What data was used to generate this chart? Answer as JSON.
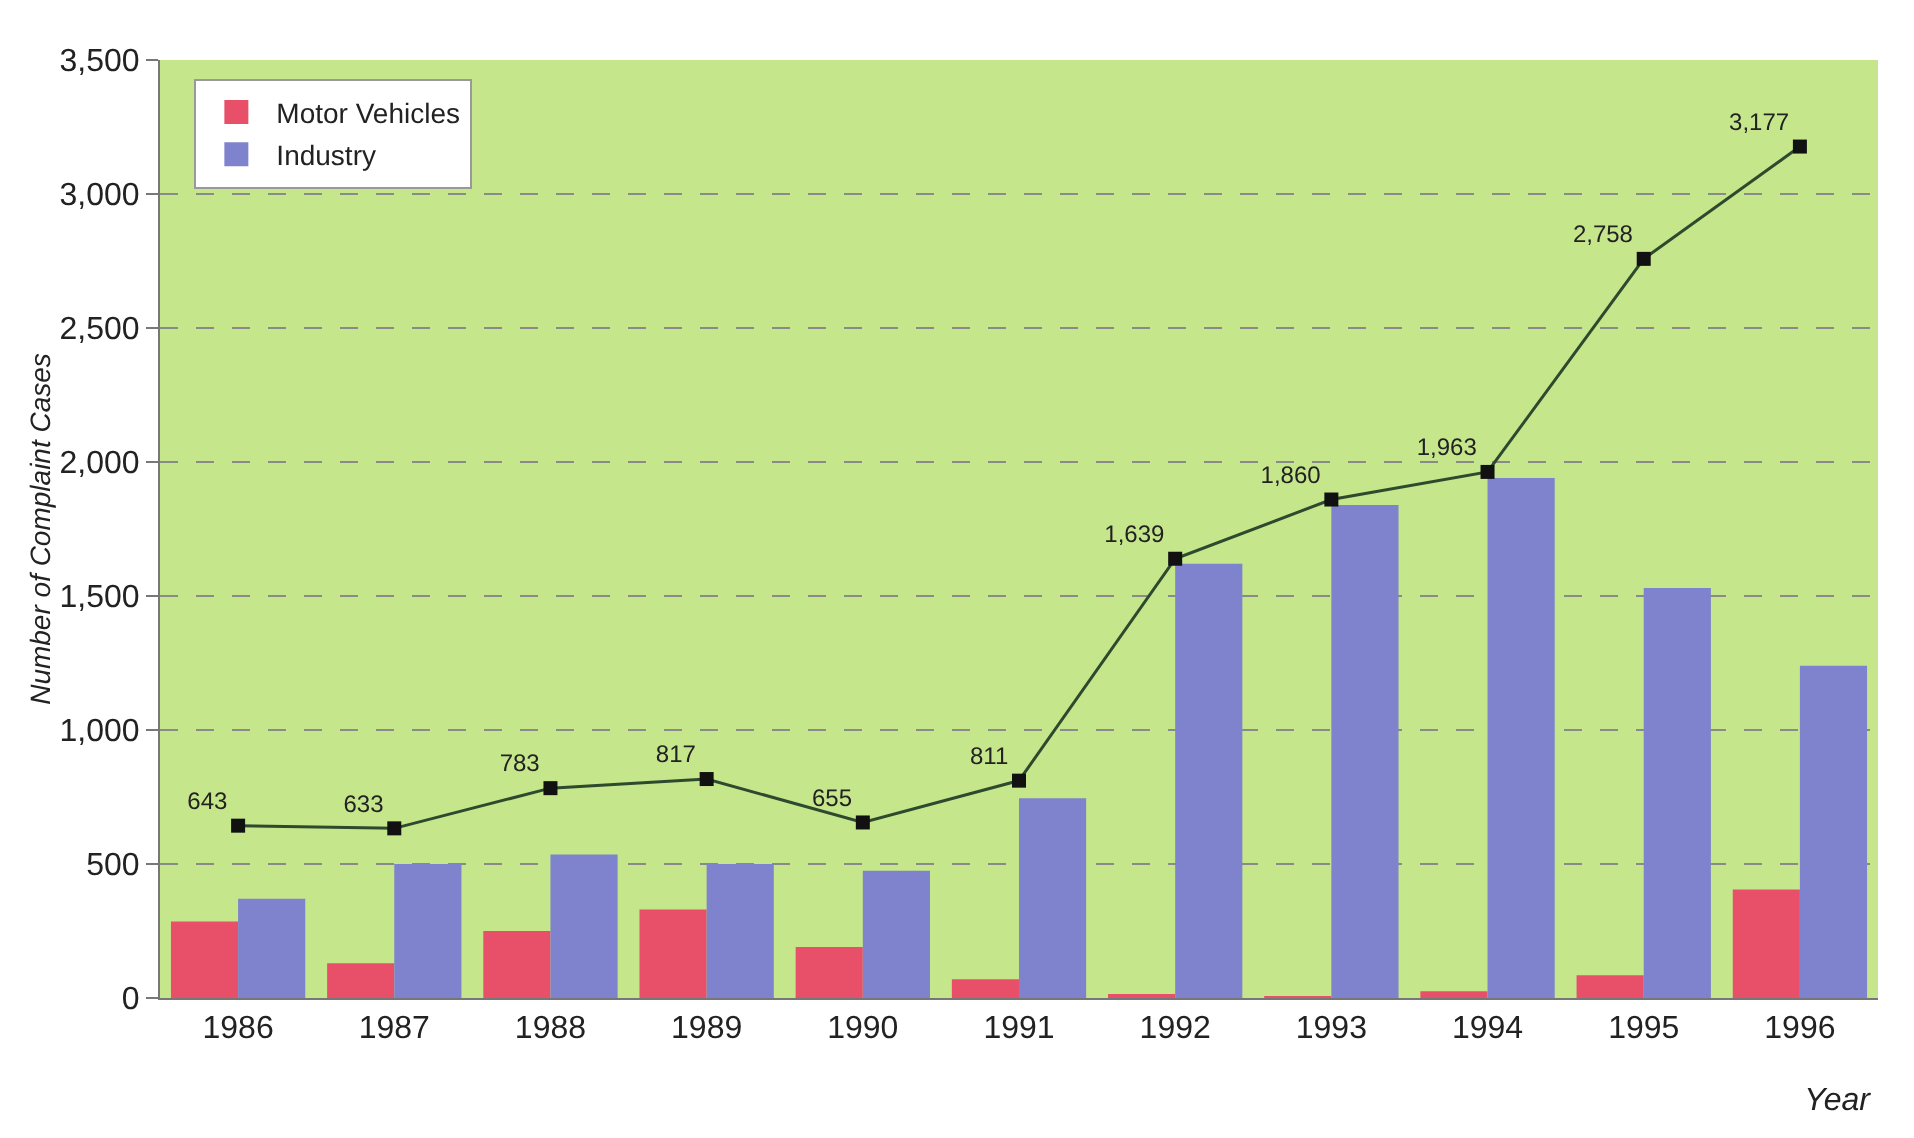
{
  "chart_data": {
    "type": "bar",
    "xlabel": "Year",
    "ylabel": "Number of Complaint Cases",
    "categories": [
      "1986",
      "1987",
      "1988",
      "1989",
      "1990",
      "1991",
      "1992",
      "1993",
      "1994",
      "1995",
      "1996"
    ],
    "series": [
      {
        "name": "Motor Vehicles",
        "color": "#e8506a",
        "values": [
          285,
          130,
          250,
          330,
          190,
          70,
          10,
          5,
          25,
          85,
          405
        ]
      },
      {
        "name": "Industry",
        "color": "#7f82cc",
        "values": [
          370,
          500,
          535,
          500,
          475,
          745,
          1620,
          1840,
          1940,
          1530,
          1240
        ]
      },
      {
        "type": "line",
        "color": "#2e4a2e",
        "marker": "square",
        "values": [
          643,
          633,
          783,
          817,
          655,
          811,
          1639,
          1860,
          1963,
          2758,
          3177
        ],
        "value_labels": [
          "643",
          "633",
          "783",
          "817",
          "655",
          "811",
          "1,639",
          "1,860",
          "1,963",
          "2,758",
          "3,177"
        ]
      }
    ],
    "ylim": [
      0,
      3500
    ],
    "yticks": [
      {
        "value": 0,
        "label": "0"
      },
      {
        "value": 500,
        "label": "500"
      },
      {
        "value": 1000,
        "label": "1,000"
      },
      {
        "value": 1500,
        "label": "1,500"
      },
      {
        "value": 2000,
        "label": "2,000"
      },
      {
        "value": 2500,
        "label": "2,500"
      },
      {
        "value": 3000,
        "label": "3,000"
      },
      {
        "value": 3500,
        "label": "3,500"
      }
    ],
    "grid": "y",
    "legend": "top left"
  }
}
